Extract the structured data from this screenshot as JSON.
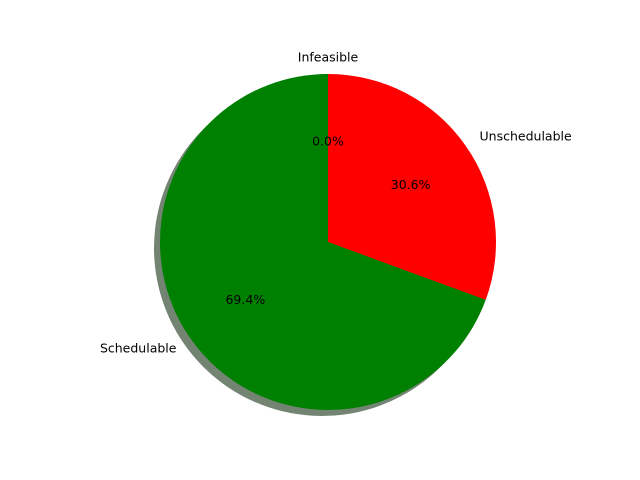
{
  "chart_data": {
    "type": "pie",
    "title": "",
    "slices": [
      {
        "label": "Infeasible",
        "value": 0.0,
        "pct_label": "0.0%",
        "color": "#ff7f0e"
      },
      {
        "label": "Unschedulable",
        "value": 30.6,
        "pct_label": "30.6%",
        "color": "#ff0000"
      },
      {
        "label": "Schedulable",
        "value": 69.4,
        "pct_label": "69.4%",
        "color": "#008000"
      }
    ],
    "start_angle_deg": 90,
    "direction": "clockwise",
    "shadow": true,
    "shadow_color": "#738473",
    "legend": "none"
  }
}
